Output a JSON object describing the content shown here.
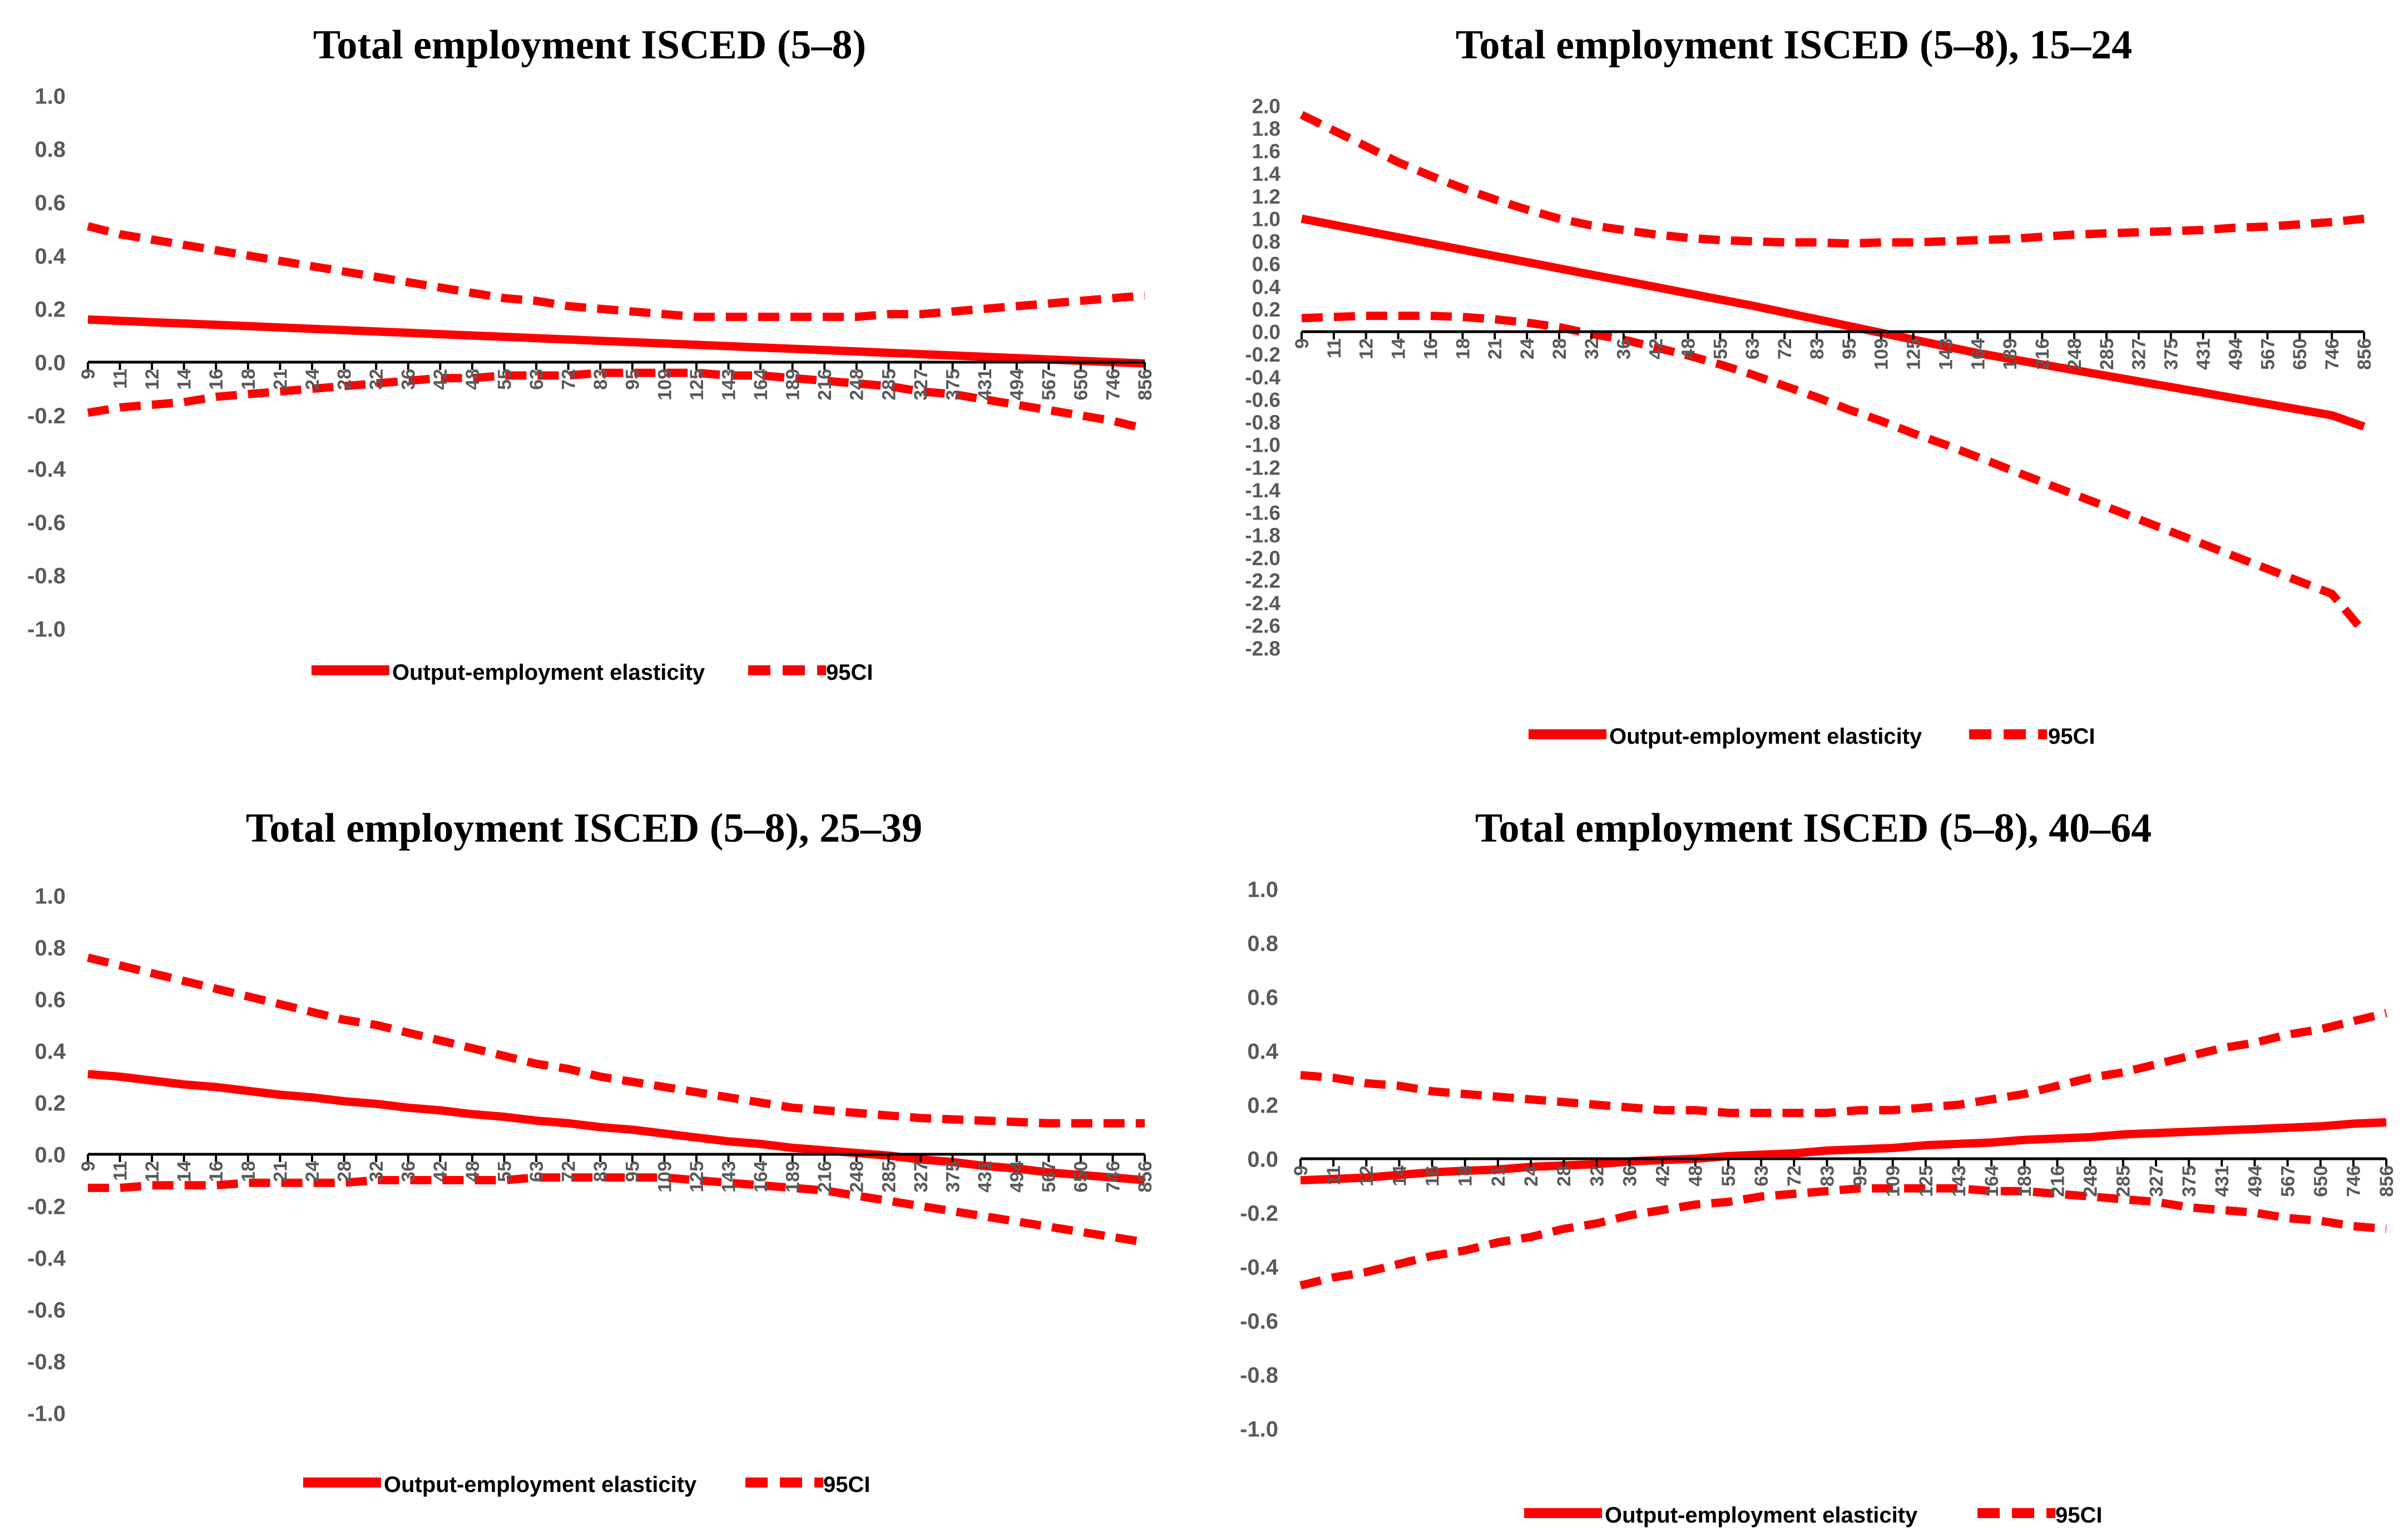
{
  "colors": {
    "series": "#FF0000",
    "axis": "#000000",
    "tick_text": "#595959",
    "title_text": "#000000"
  },
  "chart_data": [
    {
      "type": "line",
      "title": "Total employment ISCED (5–8)",
      "xlabel": "",
      "ylabel": "",
      "categories": [
        "9",
        "11",
        "12",
        "14",
        "16",
        "18",
        "21",
        "24",
        "28",
        "32",
        "36",
        "42",
        "48",
        "55",
        "63",
        "72",
        "83",
        "95",
        "109",
        "125",
        "143",
        "164",
        "189",
        "216",
        "248",
        "285",
        "327",
        "375",
        "431",
        "494",
        "567",
        "650",
        "746",
        "856"
      ],
      "yticks": [
        "1.0",
        "0.8",
        "0.6",
        "0.4",
        "0.2",
        "0.0",
        "-0.2",
        "-0.4",
        "-0.6",
        "-0.8",
        "-1.0"
      ],
      "ylim": [
        -1.0,
        1.0
      ],
      "series": [
        {
          "name": "Output-employment elasticity",
          "style": "solid",
          "values": [
            0.16,
            0.155,
            0.15,
            0.145,
            0.14,
            0.135,
            0.13,
            0.125,
            0.12,
            0.115,
            0.11,
            0.105,
            0.1,
            0.095,
            0.09,
            0.085,
            0.08,
            0.075,
            0.07,
            0.065,
            0.06,
            0.055,
            0.05,
            0.045,
            0.04,
            0.035,
            0.03,
            0.025,
            0.02,
            0.015,
            0.01,
            0.005,
            0.0,
            -0.005
          ]
        },
        {
          "name": "95CI",
          "style": "dashed",
          "values": [
            0.51,
            0.48,
            0.46,
            0.44,
            0.42,
            0.4,
            0.38,
            0.36,
            0.34,
            0.32,
            0.3,
            0.28,
            0.26,
            0.24,
            0.23,
            0.21,
            0.2,
            0.19,
            0.18,
            0.17,
            0.17,
            0.17,
            0.17,
            0.17,
            0.17,
            0.18,
            0.18,
            0.19,
            0.2,
            0.21,
            0.22,
            0.23,
            0.24,
            0.25
          ]
        },
        {
          "name": "95CI lower",
          "style": "dashed",
          "legend": false,
          "values": [
            -0.19,
            -0.17,
            -0.16,
            -0.15,
            -0.13,
            -0.12,
            -0.11,
            -0.1,
            -0.09,
            -0.08,
            -0.07,
            -0.06,
            -0.06,
            -0.05,
            -0.05,
            -0.05,
            -0.04,
            -0.04,
            -0.04,
            -0.04,
            -0.05,
            -0.05,
            -0.06,
            -0.07,
            -0.08,
            -0.09,
            -0.11,
            -0.12,
            -0.14,
            -0.16,
            -0.18,
            -0.2,
            -0.22,
            -0.25
          ]
        }
      ],
      "legend": [
        "Output-employment elasticity",
        "95CI"
      ],
      "legend_position": "bottom"
    },
    {
      "type": "line",
      "title": "Total employment ISCED (5–8), 15–24",
      "xlabel": "",
      "ylabel": "",
      "categories": [
        "9",
        "11",
        "12",
        "14",
        "16",
        "18",
        "21",
        "24",
        "28",
        "32",
        "36",
        "42",
        "48",
        "55",
        "63",
        "72",
        "83",
        "95",
        "109",
        "125",
        "143",
        "164",
        "189",
        "216",
        "248",
        "285",
        "327",
        "375",
        "431",
        "494",
        "567",
        "650",
        "746",
        "856"
      ],
      "yticks": [
        "2.0",
        "1.8",
        "1.6",
        "1.4",
        "1.2",
        "1.0",
        "0.8",
        "0.6",
        "0.4",
        "0.2",
        "0.0",
        "-0.2",
        "-0.4",
        "-0.6",
        "-0.8",
        "-1.0",
        "-1.2",
        "-1.4",
        "-1.6",
        "-1.8",
        "-2.0",
        "-2.2",
        "-2.4",
        "-2.6",
        "-2.8"
      ],
      "ylim": [
        -2.8,
        2.0
      ],
      "series": [
        {
          "name": "Output-employment elasticity",
          "style": "solid",
          "values": [
            1.0,
            0.945,
            0.89,
            0.835,
            0.78,
            0.725,
            0.67,
            0.615,
            0.56,
            0.505,
            0.45,
            0.395,
            0.34,
            0.285,
            0.23,
            0.17,
            0.11,
            0.05,
            -0.01,
            -0.07,
            -0.13,
            -0.19,
            -0.24,
            -0.29,
            -0.34,
            -0.39,
            -0.44,
            -0.49,
            -0.54,
            -0.59,
            -0.64,
            -0.69,
            -0.74,
            -0.84
          ]
        },
        {
          "name": "95CI",
          "style": "dashed",
          "values": [
            1.92,
            1.78,
            1.64,
            1.5,
            1.38,
            1.27,
            1.17,
            1.08,
            1.0,
            0.94,
            0.9,
            0.86,
            0.83,
            0.81,
            0.8,
            0.79,
            0.79,
            0.78,
            0.79,
            0.79,
            0.8,
            0.81,
            0.82,
            0.84,
            0.86,
            0.87,
            0.88,
            0.89,
            0.9,
            0.92,
            0.93,
            0.95,
            0.97,
            1.0
          ]
        },
        {
          "name": "95CI lower",
          "style": "dashed",
          "legend": false,
          "values": [
            0.12,
            0.13,
            0.14,
            0.14,
            0.14,
            0.13,
            0.11,
            0.08,
            0.04,
            -0.02,
            -0.07,
            -0.14,
            -0.21,
            -0.29,
            -0.38,
            -0.48,
            -0.58,
            -0.69,
            -0.79,
            -0.9,
            -1.0,
            -1.11,
            -1.22,
            -1.33,
            -1.44,
            -1.55,
            -1.66,
            -1.77,
            -1.88,
            -1.99,
            -2.1,
            -2.21,
            -2.32,
            -2.66
          ]
        }
      ],
      "legend": [
        "Output-employment elasticity",
        "95CI"
      ],
      "legend_position": "bottom"
    },
    {
      "type": "line",
      "title": "Total employment ISCED (5–8), 25–39",
      "xlabel": "",
      "ylabel": "",
      "categories": [
        "9",
        "11",
        "12",
        "14",
        "16",
        "18",
        "21",
        "24",
        "28",
        "32",
        "36",
        "42",
        "48",
        "55",
        "63",
        "72",
        "83",
        "95",
        "109",
        "125",
        "143",
        "164",
        "189",
        "216",
        "248",
        "285",
        "327",
        "375",
        "431",
        "494",
        "567",
        "650",
        "746",
        "856"
      ],
      "yticks": [
        "1.0",
        "0.8",
        "0.6",
        "0.4",
        "0.2",
        "0.0",
        "-0.2",
        "-0.4",
        "-0.6",
        "-0.8",
        "-1.0"
      ],
      "ylim": [
        -1.0,
        1.0
      ],
      "series": [
        {
          "name": "Output-employment elasticity",
          "style": "solid",
          "values": [
            0.31,
            0.3,
            0.285,
            0.27,
            0.26,
            0.245,
            0.23,
            0.22,
            0.205,
            0.195,
            0.18,
            0.17,
            0.155,
            0.145,
            0.13,
            0.12,
            0.105,
            0.095,
            0.08,
            0.065,
            0.05,
            0.04,
            0.025,
            0.015,
            0.005,
            -0.005,
            -0.02,
            -0.03,
            -0.045,
            -0.055,
            -0.07,
            -0.08,
            -0.09,
            -0.1
          ]
        },
        {
          "name": "95CI",
          "style": "dashed",
          "values": [
            0.76,
            0.73,
            0.7,
            0.67,
            0.64,
            0.61,
            0.58,
            0.55,
            0.52,
            0.5,
            0.47,
            0.44,
            0.41,
            0.38,
            0.35,
            0.33,
            0.3,
            0.28,
            0.26,
            0.24,
            0.22,
            0.2,
            0.18,
            0.17,
            0.16,
            0.15,
            0.14,
            0.135,
            0.13,
            0.125,
            0.12,
            0.12,
            0.12,
            0.12
          ]
        },
        {
          "name": "95CI lower",
          "style": "dashed",
          "legend": false,
          "values": [
            -0.13,
            -0.13,
            -0.12,
            -0.12,
            -0.12,
            -0.11,
            -0.11,
            -0.11,
            -0.11,
            -0.1,
            -0.1,
            -0.1,
            -0.1,
            -0.1,
            -0.09,
            -0.09,
            -0.09,
            -0.09,
            -0.09,
            -0.1,
            -0.11,
            -0.12,
            -0.13,
            -0.14,
            -0.16,
            -0.18,
            -0.2,
            -0.22,
            -0.24,
            -0.26,
            -0.28,
            -0.3,
            -0.32,
            -0.34
          ]
        }
      ],
      "legend": [
        "Output-employment elasticity",
        "95CI"
      ],
      "legend_position": "bottom"
    },
    {
      "type": "line",
      "title": "Total employment ISCED (5–8), 40–64",
      "xlabel": "",
      "ylabel": "",
      "categories": [
        "9",
        "11",
        "12",
        "14",
        "16",
        "18",
        "21",
        "24",
        "28",
        "32",
        "36",
        "42",
        "48",
        "55",
        "63",
        "72",
        "83",
        "95",
        "109",
        "125",
        "143",
        "164",
        "189",
        "216",
        "248",
        "285",
        "327",
        "375",
        "431",
        "494",
        "567",
        "650",
        "746",
        "856"
      ],
      "yticks": [
        "1.0",
        "0.8",
        "0.6",
        "0.4",
        "0.2",
        "0.0",
        "-0.2",
        "-0.4",
        "-0.6",
        "-0.8",
        "-1.0"
      ],
      "ylim": [
        -1.0,
        1.0
      ],
      "series": [
        {
          "name": "Output-employment elasticity",
          "style": "solid",
          "values": [
            -0.08,
            -0.075,
            -0.07,
            -0.06,
            -0.05,
            -0.045,
            -0.04,
            -0.03,
            -0.025,
            -0.02,
            -0.01,
            -0.005,
            0.0,
            0.01,
            0.015,
            0.02,
            0.03,
            0.035,
            0.04,
            0.05,
            0.055,
            0.06,
            0.07,
            0.075,
            0.08,
            0.09,
            0.095,
            0.1,
            0.105,
            0.11,
            0.115,
            0.12,
            0.13,
            0.135
          ]
        },
        {
          "name": "95CI",
          "style": "dashed",
          "values": [
            0.31,
            0.3,
            0.28,
            0.27,
            0.25,
            0.24,
            0.23,
            0.22,
            0.21,
            0.2,
            0.19,
            0.18,
            0.18,
            0.17,
            0.17,
            0.17,
            0.17,
            0.18,
            0.18,
            0.19,
            0.2,
            0.22,
            0.24,
            0.27,
            0.3,
            0.32,
            0.35,
            0.38,
            0.41,
            0.43,
            0.46,
            0.48,
            0.51,
            0.54
          ]
        },
        {
          "name": "95CI lower",
          "style": "dashed",
          "legend": false,
          "values": [
            -0.47,
            -0.44,
            -0.42,
            -0.39,
            -0.36,
            -0.34,
            -0.31,
            -0.29,
            -0.26,
            -0.24,
            -0.21,
            -0.19,
            -0.17,
            -0.16,
            -0.14,
            -0.13,
            -0.12,
            -0.11,
            -0.11,
            -0.11,
            -0.11,
            -0.12,
            -0.12,
            -0.13,
            -0.14,
            -0.15,
            -0.16,
            -0.18,
            -0.19,
            -0.2,
            -0.22,
            -0.23,
            -0.25,
            -0.26
          ]
        }
      ],
      "legend": [
        "Output-employment elasticity",
        "95CI"
      ],
      "legend_position": "bottom"
    }
  ]
}
